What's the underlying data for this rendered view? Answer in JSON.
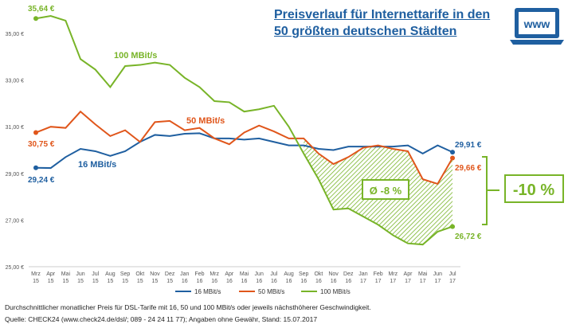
{
  "title_line1": "Preisverlauf für Internettarife in den",
  "title_line2": "50 größten deutschen Städten",
  "icon_label": "www",
  "footnote1": "Durchschnittlicher monatlicher Preis für DSL-Tarife mit 16, 50 und 100 MBit/s oder jeweils nächsthöherer Geschwindigkeit.",
  "footnote2": "Quelle: CHECK24 (www.check24.de/dsl/; 089 - 24 24 11 77); Angaben ohne Gewähr, Stand: 15.07.2017",
  "chart_data": {
    "type": "line",
    "title": "Preisverlauf für Internettarife in den 50 größten deutschen Städten",
    "ylim": [
      25,
      36
    ],
    "yticks": [
      "25,00 €",
      "27,00 €",
      "29,00 €",
      "31,00 €",
      "33,00 €",
      "35,00 €"
    ],
    "ytick_values": [
      25,
      27,
      29,
      31,
      33,
      35
    ],
    "categories": [
      [
        "Mrz",
        "15"
      ],
      [
        "Apr",
        "15"
      ],
      [
        "Mai",
        "15"
      ],
      [
        "Jun",
        "15"
      ],
      [
        "Jul",
        "15"
      ],
      [
        "Aug",
        "15"
      ],
      [
        "Sep",
        "15"
      ],
      [
        "Okt",
        "15"
      ],
      [
        "Nov",
        "15"
      ],
      [
        "Dez",
        "15"
      ],
      [
        "Jan",
        "16"
      ],
      [
        "Feb",
        "16"
      ],
      [
        "Mrz",
        "16"
      ],
      [
        "Apr",
        "16"
      ],
      [
        "Mai",
        "16"
      ],
      [
        "Jun",
        "16"
      ],
      [
        "Jul",
        "16"
      ],
      [
        "Aug",
        "16"
      ],
      [
        "Sep",
        "16"
      ],
      [
        "Okt",
        "16"
      ],
      [
        "Nov",
        "16"
      ],
      [
        "Dez",
        "16"
      ],
      [
        "Jan",
        "17"
      ],
      [
        "Feb",
        "17"
      ],
      [
        "Mrz",
        "17"
      ],
      [
        "Apr",
        "17"
      ],
      [
        "Mai",
        "17"
      ],
      [
        "Jun",
        "17"
      ],
      [
        "Jul",
        "17"
      ]
    ],
    "series": [
      {
        "name": "16 MBit/s",
        "color": "#1f5fa0",
        "label": "16 MBit/s",
        "start_label": "29,24 €",
        "end_label": "29,91 €",
        "values": [
          29.24,
          29.23,
          29.7,
          30.05,
          29.95,
          29.75,
          29.95,
          30.35,
          30.65,
          30.6,
          30.7,
          30.72,
          30.5,
          30.5,
          30.45,
          30.5,
          30.35,
          30.2,
          30.2,
          30.05,
          30.0,
          30.15,
          30.15,
          30.15,
          30.15,
          30.2,
          29.85,
          30.2,
          29.91
        ]
      },
      {
        "name": "50 MBit/s",
        "color": "#e0561b",
        "label": "50 MBit/s",
        "start_label": "30,75 €",
        "end_label": "29,66 €",
        "values": [
          30.75,
          31.0,
          30.95,
          31.65,
          31.1,
          30.6,
          30.85,
          30.35,
          31.2,
          31.25,
          30.85,
          30.95,
          30.5,
          30.25,
          30.75,
          31.05,
          30.8,
          30.5,
          30.5,
          29.85,
          29.4,
          29.7,
          30.1,
          30.2,
          30.05,
          29.95,
          28.75,
          28.55,
          29.66
        ]
      },
      {
        "name": "100 MBit/s",
        "color": "#78b428",
        "label": "100 MBit/s",
        "start_label": "35,64 €",
        "end_label": "26,72 €",
        "values": [
          35.64,
          35.75,
          35.55,
          33.9,
          33.45,
          32.7,
          33.6,
          33.65,
          33.75,
          33.65,
          33.1,
          32.7,
          32.1,
          32.05,
          31.65,
          31.75,
          31.9,
          31.0,
          29.85,
          28.75,
          27.45,
          27.5,
          27.15,
          26.8,
          26.35,
          26.0,
          25.95,
          26.5,
          26.72
        ]
      }
    ],
    "annotations": {
      "avg": "Ø -8 %",
      "total": "-10 %"
    },
    "legend_position": "bottom"
  }
}
